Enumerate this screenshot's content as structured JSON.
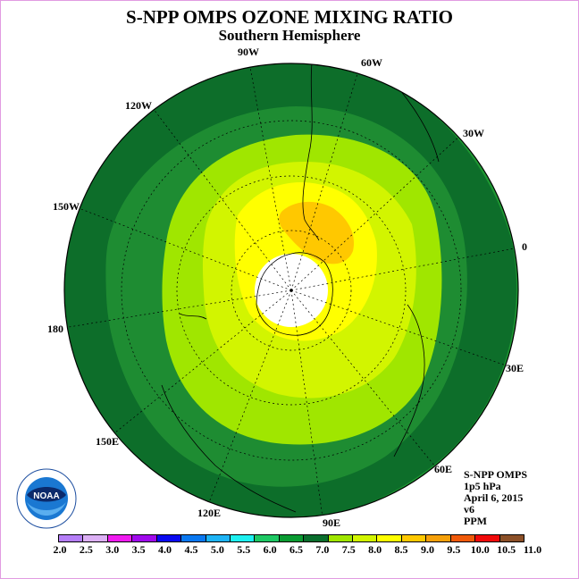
{
  "title": "S-NPP OMPS OZONE MIXING RATIO",
  "subtitle": "Southern Hemisphere",
  "longitude_labels": [
    "90W",
    "60W",
    "30W",
    "0",
    "30E",
    "60E",
    "90E",
    "120E",
    "150E",
    "180",
    "150W",
    "120W"
  ],
  "info": {
    "instrument": "S-NPP OMPS",
    "level": "1p5 hPa",
    "date": "April 6, 2015",
    "version": "v6",
    "units": "PPM"
  },
  "logo": {
    "text": "NOAA",
    "icon": "noaa-logo"
  },
  "colorbar": {
    "ticks": [
      "2.0",
      "2.5",
      "3.0",
      "3.5",
      "4.0",
      "4.5",
      "5.0",
      "5.5",
      "6.0",
      "6.5",
      "7.0",
      "7.5",
      "8.0",
      "8.5",
      "9.0",
      "9.5",
      "10.0",
      "10.5",
      "11.0"
    ],
    "colors": [
      "#b57ef7",
      "#dcb0f5",
      "#f01cf0",
      "#a00aec",
      "#0a0af0",
      "#0a78f0",
      "#1eb4f5",
      "#1ef0f0",
      "#1ec864",
      "#0a9b32",
      "#0a6e2d",
      "#a0e600",
      "#d2f500",
      "#ffff00",
      "#ffc800",
      "#f5a00a",
      "#f05a0a",
      "#f00a0a",
      "#8c5028"
    ]
  },
  "ozone_levels_ppm": {
    "outer_ring": "6.0-6.5",
    "dark_band": "6.5-7.0",
    "middle_band": "7.5-8.0",
    "inner_band": "8.0-8.5",
    "maximum": "8.5-9.0",
    "pole": "no data"
  }
}
